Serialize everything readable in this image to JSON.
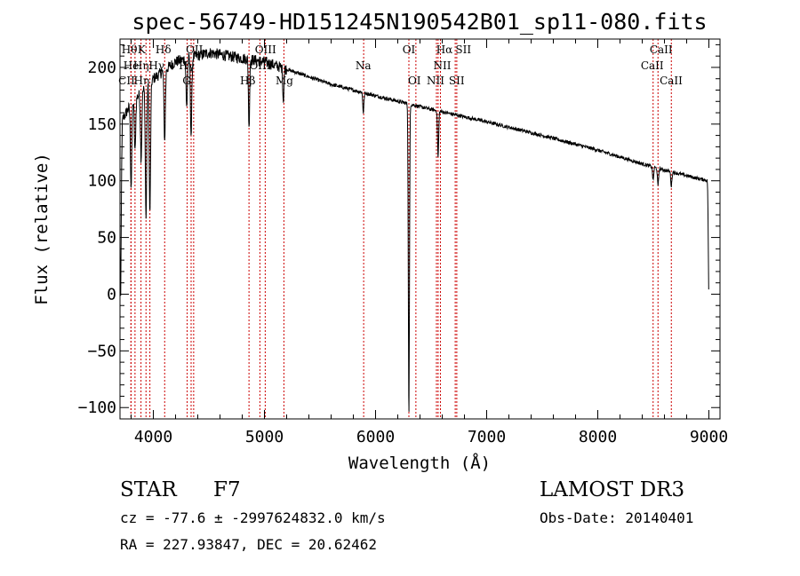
{
  "chart_data": {
    "type": "line",
    "title": "spec-56749-HD151245N190542B01_sp11-080.fits",
    "xlabel": "Wavelength (Å)",
    "ylabel": "Flux (relative)",
    "xlim": [
      3700,
      9100
    ],
    "ylim": [
      -110,
      225
    ],
    "xticks": [
      4000,
      5000,
      6000,
      7000,
      8000,
      9000
    ],
    "yticks": [
      -100,
      -50,
      0,
      50,
      100,
      150,
      200
    ],
    "series": [
      {
        "name": "flux",
        "continuum_points": [
          [
            3700,
            150
          ],
          [
            3800,
            168
          ],
          [
            4000,
            190
          ],
          [
            4200,
            205
          ],
          [
            4500,
            213
          ],
          [
            4800,
            208
          ],
          [
            5000,
            205
          ],
          [
            5300,
            195
          ],
          [
            5600,
            185
          ],
          [
            6000,
            175
          ],
          [
            6500,
            163
          ],
          [
            7000,
            152
          ],
          [
            7500,
            140
          ],
          [
            8000,
            127
          ],
          [
            8500,
            112
          ],
          [
            8900,
            102
          ],
          [
            9000,
            100
          ]
        ],
        "absorption_features": [
          [
            3705,
            -5
          ],
          [
            3800,
            95
          ],
          [
            3835,
            125
          ],
          [
            3890,
            120
          ],
          [
            3934,
            65
          ],
          [
            3969,
            70
          ],
          [
            4102,
            135
          ],
          [
            4300,
            165
          ],
          [
            4340,
            140
          ],
          [
            4861,
            145
          ],
          [
            5170,
            170
          ],
          [
            5890,
            160
          ],
          [
            6300,
            -110
          ],
          [
            6563,
            120
          ],
          [
            8498,
            100
          ],
          [
            8542,
            95
          ],
          [
            8662,
            95
          ],
          [
            9000,
            -5
          ]
        ]
      }
    ],
    "line_markers": [
      {
        "name": "Hθ",
        "wavelength": 3798
      },
      {
        "name": "He",
        "wavelength": 3835
      },
      {
        "name": "CII",
        "wavelength": 3800
      },
      {
        "name": "Hη",
        "wavelength": 3889
      },
      {
        "name": "K",
        "wavelength": 3934
      },
      {
        "name": "H",
        "wavelength": 3969
      },
      {
        "name": "Hδ",
        "wavelength": 4102
      },
      {
        "name": "G",
        "wavelength": 4304
      },
      {
        "name": "Hγ",
        "wavelength": 4340
      },
      {
        "name": "OII",
        "wavelength": 4363
      },
      {
        "name": "Hβ",
        "wavelength": 4861
      },
      {
        "name": "OIII",
        "wavelength": 4959
      },
      {
        "name": "OIII",
        "wavelength": 5007
      },
      {
        "name": "Mg",
        "wavelength": 5175
      },
      {
        "name": "Na",
        "wavelength": 5893
      },
      {
        "name": "OI",
        "wavelength": 6300
      },
      {
        "name": "OI",
        "wavelength": 6363
      },
      {
        "name": "Hα",
        "wavelength": 6563
      },
      {
        "name": "NII",
        "wavelength": 6548
      },
      {
        "name": "NII",
        "wavelength": 6584
      },
      {
        "name": "SII",
        "wavelength": 6717
      },
      {
        "name": "SII",
        "wavelength": 6731
      },
      {
        "name": "CaII",
        "wavelength": 8498
      },
      {
        "name": "CaII",
        "wavelength": 8542
      },
      {
        "name": "CaII",
        "wavelength": 8662
      }
    ],
    "marker_labels": [
      {
        "text": "Hθ",
        "wavelength": 3785,
        "row": 1
      },
      {
        "text": "K",
        "wavelength": 3895,
        "row": 1
      },
      {
        "text": "Hδ",
        "wavelength": 4090,
        "row": 1
      },
      {
        "text": "OII",
        "wavelength": 4370,
        "row": 1
      },
      {
        "text": "OIII",
        "wavelength": 5010,
        "row": 1
      },
      {
        "text": "OI",
        "wavelength": 6300,
        "row": 1
      },
      {
        "text": "Hα",
        "wavelength": 6620,
        "row": 1
      },
      {
        "text": "SII",
        "wavelength": 6790,
        "row": 1
      },
      {
        "text": "CaII",
        "wavelength": 8570,
        "row": 1
      },
      {
        "text": "He",
        "wavelength": 3800,
        "row": 2
      },
      {
        "text": "Hη",
        "wavelength": 3890,
        "row": 2
      },
      {
        "text": "Hγ",
        "wavelength": 4030,
        "row": 2
      },
      {
        "text": "Hγ",
        "wavelength": 4300,
        "row": 2
      },
      {
        "text": "OIII",
        "wavelength": 4960,
        "row": 2
      },
      {
        "text": "Na",
        "wavelength": 5890,
        "row": 2
      },
      {
        "text": "NII",
        "wavelength": 6600,
        "row": 2
      },
      {
        "text": "CaII",
        "wavelength": 8490,
        "row": 2
      },
      {
        "text": "CII",
        "wavelength": 3760,
        "row": 3
      },
      {
        "text": "Hη",
        "wavelength": 3895,
        "row": 3
      },
      {
        "text": "G",
        "wavelength": 4300,
        "row": 3
      },
      {
        "text": "Hβ",
        "wavelength": 4850,
        "row": 3
      },
      {
        "text": "Mg",
        "wavelength": 5180,
        "row": 3
      },
      {
        "text": "OI",
        "wavelength": 6350,
        "row": 3
      },
      {
        "text": "NII",
        "wavelength": 6540,
        "row": 3
      },
      {
        "text": "SII",
        "wavelength": 6730,
        "row": 3
      },
      {
        "text": "CaII",
        "wavelength": 8660,
        "row": 3
      }
    ]
  },
  "info": {
    "object_class": "STAR",
    "subclass": "F7",
    "survey": "LAMOST DR3",
    "cz_line": "cz = -77.6 ± -2997624832.0 km/s",
    "obs_date": "Obs-Date: 20140401",
    "coords": "RA = 227.93847, DEC =  20.62462"
  },
  "colors": {
    "line_marker": "#cc0000",
    "spectrum": "#000000",
    "axes": "#000000"
  }
}
